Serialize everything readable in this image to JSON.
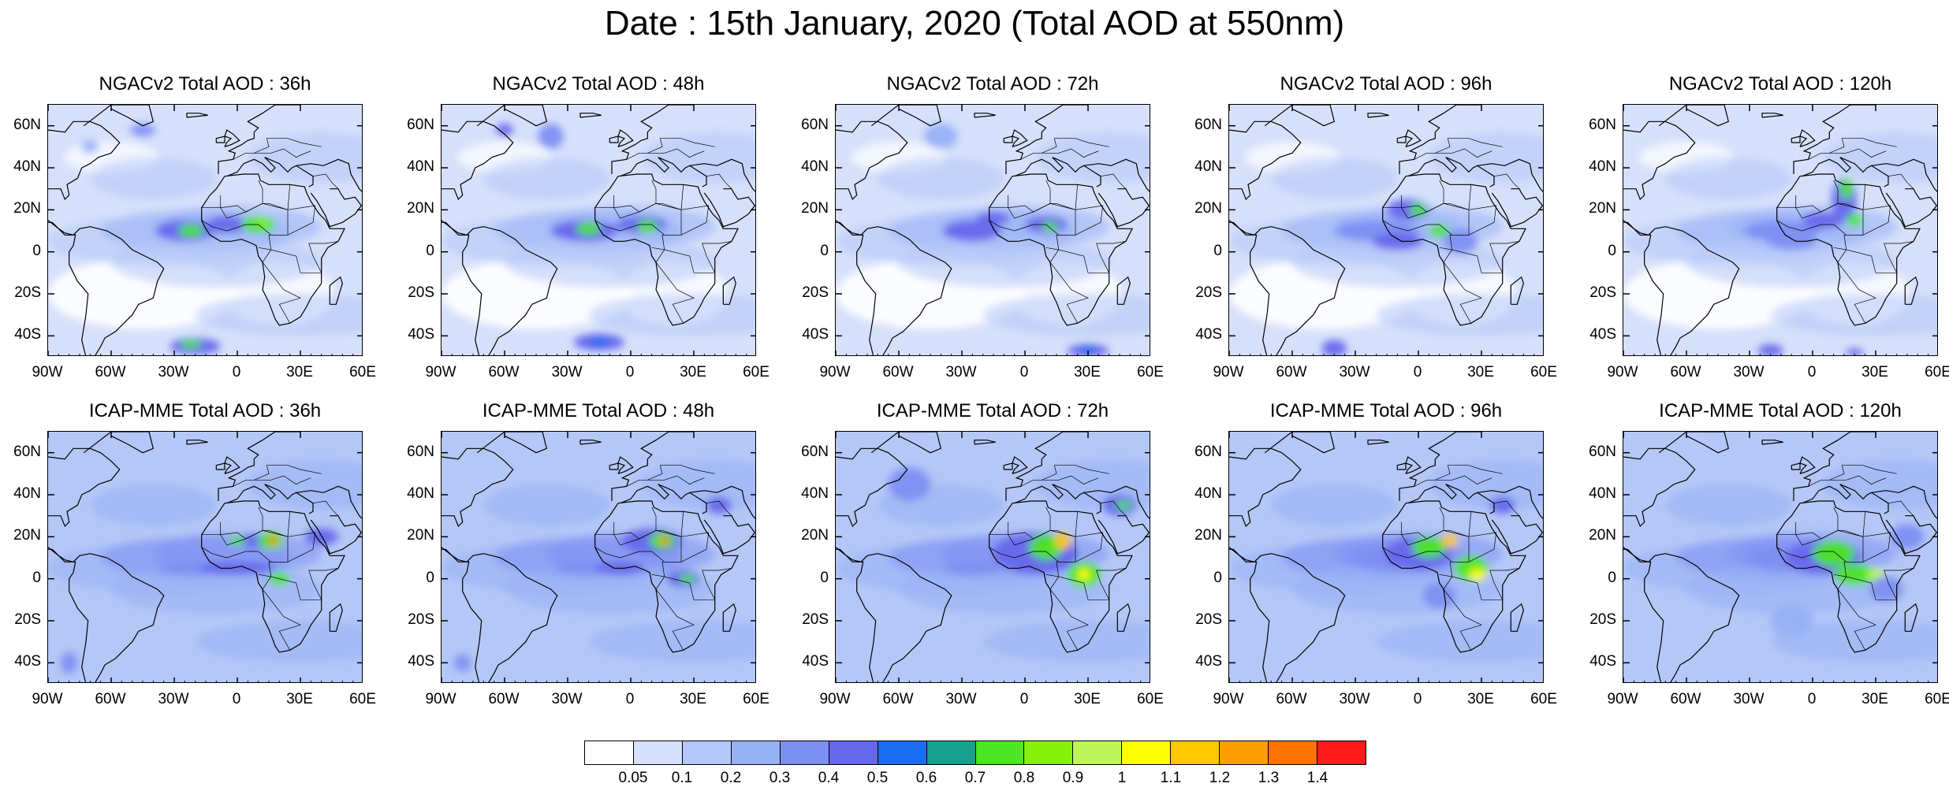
{
  "title": "Date : 15th January, 2020 (Total AOD at 550nm)",
  "panels": [
    {
      "title": "NGACv2 Total AOD : 36h",
      "model": "NGACv2",
      "lead": "36h"
    },
    {
      "title": "NGACv2 Total AOD : 48h",
      "model": "NGACv2",
      "lead": "48h"
    },
    {
      "title": "NGACv2 Total AOD : 72h",
      "model": "NGACv2",
      "lead": "72h"
    },
    {
      "title": "NGACv2 Total AOD : 96h",
      "model": "NGACv2",
      "lead": "96h"
    },
    {
      "title": "NGACv2 Total AOD : 120h",
      "model": "NGACv2",
      "lead": "120h"
    },
    {
      "title": "ICAP-MME Total AOD : 36h",
      "model": "ICAP-MME",
      "lead": "36h"
    },
    {
      "title": "ICAP-MME Total AOD : 48h",
      "model": "ICAP-MME",
      "lead": "48h"
    },
    {
      "title": "ICAP-MME Total AOD : 72h",
      "model": "ICAP-MME",
      "lead": "72h"
    },
    {
      "title": "ICAP-MME Total AOD : 96h",
      "model": "ICAP-MME",
      "lead": "96h"
    },
    {
      "title": "ICAP-MME Total AOD : 120h",
      "model": "ICAP-MME",
      "lead": "120h"
    }
  ],
  "axes": {
    "lat_labels": [
      "60N",
      "40N",
      "20N",
      "0",
      "20S",
      "40S"
    ],
    "lon_labels": [
      "90W",
      "60W",
      "30W",
      "0",
      "30E",
      "60E"
    ]
  },
  "colorbar": {
    "labels": [
      "0.05",
      "0.1",
      "0.2",
      "0.3",
      "0.4",
      "0.5",
      "0.6",
      "0.7",
      "0.8",
      "0.9",
      "1",
      "1.1",
      "1.2",
      "1.3",
      "1.4"
    ],
    "colors": [
      "#ffffff",
      "#d6e0fb",
      "#b4c7f7",
      "#97b1f5",
      "#7e8ff2",
      "#6767ec",
      "#1a6cf0",
      "#16a08e",
      "#4de622",
      "#86f20c",
      "#bdf55a",
      "#ffff00",
      "#ffc800",
      "#ff9f00",
      "#ff7300",
      "#ff1a1a"
    ]
  }
}
